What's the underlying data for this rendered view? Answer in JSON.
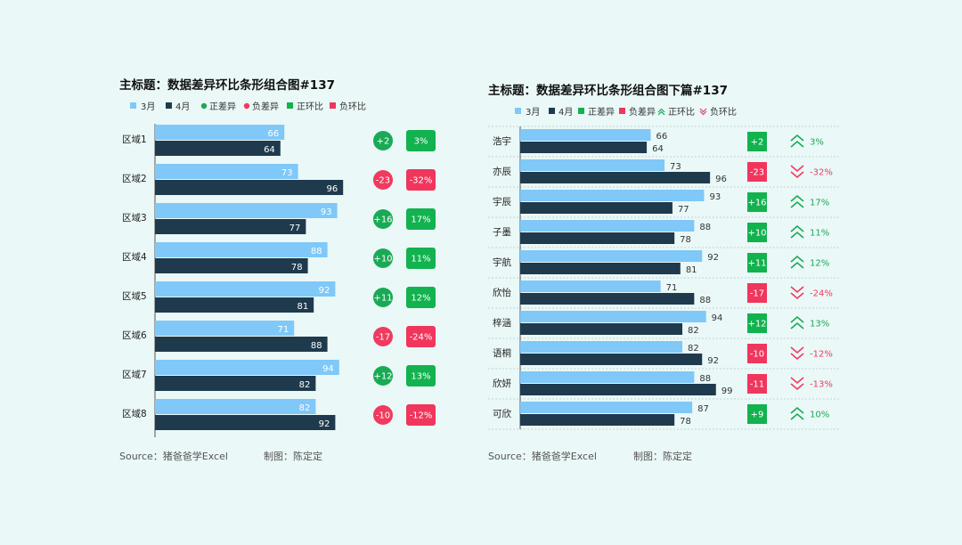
{
  "charts": [
    {
      "title": "主标题：数据差异环比条形组合图#137",
      "legend": [
        "3月",
        "4月",
        "正差异",
        "负差异",
        "正环比",
        "负环比"
      ],
      "source": "Source：猪爸爸学Excel",
      "author": "制图：陈定定"
    },
    {
      "title": "主标题：数据差异环比条形组合图下篇#137",
      "legend": [
        "3月",
        "4月",
        "正差异",
        "负差异",
        "正环比",
        "负环比"
      ],
      "source": "Source：猪爸爸学Excel",
      "author": "制图：陈定定"
    }
  ],
  "colors": {
    "march": "#7fc8f8",
    "april": "#1f3a4d",
    "positive": "#1aaa55",
    "negative": "#f03a5f",
    "positive_square": "#12b24f",
    "negative_square": "#f0365c"
  },
  "chart_data": [
    {
      "type": "bar",
      "orientation": "horizontal",
      "categories": [
        "区域1",
        "区域2",
        "区域3",
        "区域4",
        "区域5",
        "区域6",
        "区域7",
        "区域8"
      ],
      "series": [
        {
          "name": "3月",
          "values": [
            66,
            73,
            93,
            88,
            92,
            71,
            94,
            82
          ]
        },
        {
          "name": "4月",
          "values": [
            64,
            96,
            77,
            78,
            81,
            88,
            82,
            92
          ]
        }
      ],
      "diff_labels": [
        "+2",
        "-23",
        "+16",
        "+10",
        "+11",
        "-17",
        "+12",
        "-10"
      ],
      "ratio_labels": [
        "3%",
        "-32%",
        "17%",
        "11%",
        "12%",
        "-24%",
        "13%",
        "-12%"
      ],
      "xlim": [
        0,
        100
      ]
    },
    {
      "type": "bar",
      "orientation": "horizontal",
      "categories": [
        "浩宇",
        "亦辰",
        "宇辰",
        "子墨",
        "宇航",
        "欣怡",
        "梓涵",
        "语桐",
        "欣妍",
        "可欣"
      ],
      "series": [
        {
          "name": "3月",
          "values": [
            66,
            73,
            93,
            88,
            92,
            71,
            94,
            82,
            88,
            87
          ]
        },
        {
          "name": "4月",
          "values": [
            64,
            96,
            77,
            78,
            81,
            88,
            82,
            92,
            99,
            78
          ]
        }
      ],
      "diff_labels": [
        "+2",
        "-23",
        "+16",
        "+10",
        "+11",
        "-17",
        "+12",
        "-10",
        "-11",
        "+9"
      ],
      "ratio_labels": [
        "3%",
        "-32%",
        "17%",
        "11%",
        "12%",
        "-24%",
        "13%",
        "-12%",
        "-13%",
        "10%"
      ],
      "xlim": [
        0,
        100
      ]
    }
  ]
}
